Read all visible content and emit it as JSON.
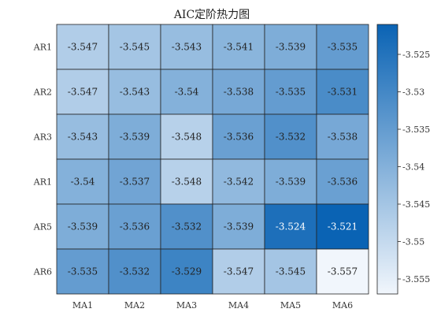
{
  "chart_data": {
    "type": "heatmap",
    "title": "AIC定阶热力图",
    "rows": [
      "AR1",
      "AR2",
      "AR3",
      "AR1",
      "AR5",
      "AR6"
    ],
    "cols": [
      "MA1",
      "MA2",
      "MA3",
      "MA4",
      "MA5",
      "MA6"
    ],
    "values": [
      [
        "-3.547",
        "-3.545",
        "-3.543",
        "-3.541",
        "-3.539",
        "-3.535"
      ],
      [
        "-3.547",
        "-3.543",
        "-3.54",
        "-3.538",
        "-3.535",
        "-3.531"
      ],
      [
        "-3.543",
        "-3.539",
        "-3.548",
        "-3.536",
        "-3.532",
        "-3.538"
      ],
      [
        "-3.54",
        "-3.537",
        "-3.548",
        "-3.542",
        "-3.539",
        "-3.536"
      ],
      [
        "-3.539",
        "-3.536",
        "-3.532",
        "-3.539",
        "-3.524",
        "-3.521"
      ],
      [
        "-3.535",
        "-3.532",
        "-3.529",
        "-3.547",
        "-3.545",
        "-3.557"
      ]
    ],
    "colorbar": {
      "range": [
        -3.557,
        -3.521
      ],
      "ticks": [
        "-3.525",
        "-3.53",
        "-3.535",
        "-3.54",
        "-3.545",
        "-3.55",
        "-3.555"
      ],
      "low_color": "#f1f6fc",
      "high_color": "#0a63b4"
    }
  }
}
